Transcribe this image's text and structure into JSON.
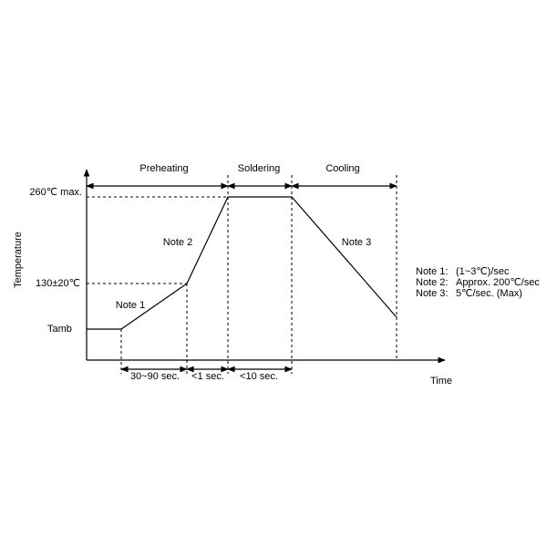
{
  "axes": {
    "y_label": "Temperature",
    "x_label": "Time"
  },
  "levels": [
    "260℃ max.",
    "130±20℃",
    "Tamb"
  ],
  "phases": [
    "Preheating",
    "Soldering",
    "Cooling"
  ],
  "durations": [
    "30~90 sec.",
    "<1 sec.",
    "<10 sec."
  ],
  "curve_notes": [
    "Note 1",
    "Note 2",
    "Note 3"
  ],
  "notes": [
    {
      "label": "Note 1:",
      "text": "(1~3℃)/sec"
    },
    {
      "label": "Note 2:",
      "text": "Approx. 200℃/sec"
    },
    {
      "label": "Note 3:",
      "text": "5℃/sec. (Max)"
    }
  ]
}
